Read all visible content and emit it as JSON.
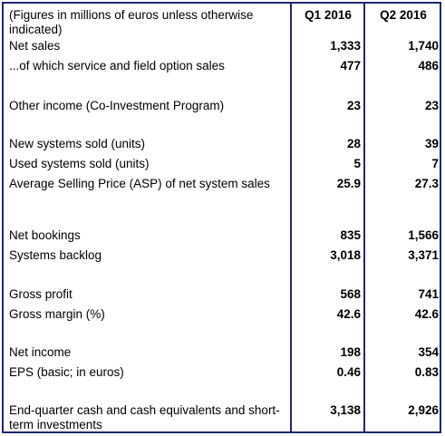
{
  "header": {
    "label": "(Figures in millions of euros unless otherwise indicated)",
    "col1": "Q1 2016",
    "col2": "Q2 2016"
  },
  "rows": [
    {
      "label": "Net sales",
      "q1": "1,333",
      "q2": "1,740"
    },
    {
      "label": "...of which service and field option sales",
      "q1": "477",
      "q2": "486"
    },
    {
      "label": "Other income (Co-Investment Program)",
      "q1": "23",
      "q2": "23"
    },
    {
      "label": "New systems sold (units)",
      "q1": "28",
      "q2": "39"
    },
    {
      "label": "Used systems sold (units)",
      "q1": "5",
      "q2": "7"
    },
    {
      "label": "Average Selling Price (ASP) of net system sales",
      "q1": "25.9",
      "q2": "27.3"
    },
    {
      "label": "Net bookings",
      "q1": "835",
      "q2": "1,566"
    },
    {
      "label": "Systems backlog",
      "q1": "3,018",
      "q2": "3,371"
    },
    {
      "label": "Gross profit",
      "q1": "568",
      "q2": "741"
    },
    {
      "label": "Gross margin (%)",
      "q1": "42.6",
      "q2": "42.6"
    },
    {
      "label": "Net income",
      "q1": "198",
      "q2": "354"
    },
    {
      "label": "EPS (basic; in euros)",
      "q1": "0.46",
      "q2": "0.83"
    },
    {
      "label": "End-quarter cash and cash equivalents and short-term investments",
      "q1": "3,138",
      "q2": "2,926"
    }
  ]
}
